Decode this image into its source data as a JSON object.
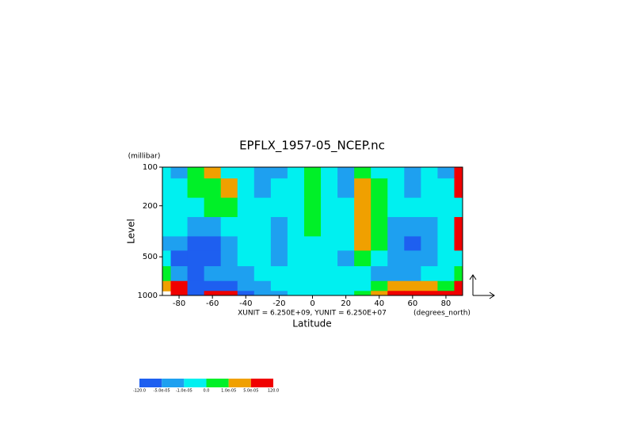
{
  "chart_data": {
    "type": "contour",
    "title": "EPFLX_1957-05_NCEP.nc",
    "y_unit": "(millibar)",
    "ylabel": "Level",
    "xlabel": "Latitude",
    "x_unit": "(degrees_north)",
    "vector_units": "XUNIT = 6.250E+09, YUNIT = 6.250E+07",
    "xlim": [
      -90,
      90
    ],
    "xticks": [
      -80,
      -60,
      -40,
      -20,
      0,
      20,
      40,
      60,
      80
    ],
    "ylim": [
      1000,
      100
    ],
    "yticks": [
      100,
      200,
      500,
      1000
    ],
    "y_log": true,
    "lat": [
      -90,
      -80,
      -70,
      -60,
      -50,
      -40,
      -30,
      -20,
      -10,
      0,
      10,
      20,
      30,
      40,
      50,
      60,
      70,
      80,
      90
    ],
    "lev": [
      100,
      150,
      200,
      300,
      400,
      500,
      700,
      850,
      1000
    ],
    "z": [
      [
        -5e-06,
        -3e-05,
        5e-06,
        3e-05,
        -5e-06,
        -5e-06,
        -3e-05,
        -3e-05,
        -5e-06,
        5e-06,
        -5e-06,
        -3e-05,
        5e-06,
        -5e-06,
        -5e-06,
        -3e-05,
        -5e-06,
        -3e-05,
        8e-05
      ],
      [
        -5e-06,
        -5e-06,
        5e-06,
        5e-06,
        3e-05,
        -5e-06,
        -3e-05,
        -5e-06,
        -5e-06,
        5e-06,
        -5e-06,
        -3e-05,
        3e-05,
        5e-06,
        -5e-06,
        -3e-05,
        -5e-06,
        -5e-06,
        8e-05
      ],
      [
        -5e-06,
        -5e-06,
        -5e-06,
        5e-06,
        5e-06,
        -5e-06,
        -5e-06,
        -5e-06,
        -5e-06,
        5e-06,
        -5e-06,
        -5e-06,
        3e-05,
        5e-06,
        -5e-06,
        -5e-06,
        -5e-06,
        -5e-06,
        -5e-06
      ],
      [
        -5e-06,
        -5e-06,
        -3e-05,
        -3e-05,
        -5e-06,
        -5e-06,
        -5e-06,
        -3e-05,
        -5e-06,
        5e-06,
        -5e-06,
        -5e-06,
        3e-05,
        5e-06,
        -3e-05,
        -3e-05,
        -3e-05,
        -5e-06,
        8e-05
      ],
      [
        -3e-05,
        -3e-05,
        -8e-05,
        -8e-05,
        -3e-05,
        -5e-06,
        -5e-06,
        -3e-05,
        -5e-06,
        -5e-06,
        -5e-06,
        -5e-06,
        3e-05,
        5e-06,
        -3e-05,
        -8e-05,
        -3e-05,
        -5e-06,
        8e-05
      ],
      [
        -5e-06,
        -8e-05,
        -8e-05,
        -8e-05,
        -3e-05,
        -5e-06,
        -5e-06,
        -3e-05,
        -5e-06,
        -5e-06,
        -5e-06,
        -3e-05,
        5e-06,
        -5e-06,
        -3e-05,
        -3e-05,
        -3e-05,
        -5e-06,
        -5e-06
      ],
      [
        5e-06,
        -3e-05,
        -8e-05,
        -3e-05,
        -3e-05,
        -3e-05,
        -5e-06,
        -5e-06,
        -5e-06,
        -5e-06,
        -5e-06,
        -5e-06,
        -5e-06,
        -3e-05,
        -3e-05,
        -3e-05,
        -5e-06,
        -5e-06,
        5e-06
      ],
      [
        3e-05,
        8e-05,
        -8e-05,
        -8e-05,
        -8e-05,
        -3e-05,
        -3e-05,
        -5e-06,
        -5e-06,
        -5e-06,
        -5e-06,
        -5e-06,
        -5e-06,
        5e-06,
        3e-05,
        3e-05,
        3e-05,
        5e-06,
        8e-05
      ],
      [
        null,
        8e-05,
        -8e-05,
        8e-05,
        8e-05,
        -8e-05,
        -3e-05,
        -3e-05,
        -5e-06,
        -5e-06,
        -5e-06,
        -5e-06,
        5e-06,
        3e-05,
        8e-05,
        8e-05,
        8e-05,
        8e-05,
        8e-05
      ]
    ],
    "colorbar": {
      "levels": [
        {
          "value": -120,
          "label": "-120.0"
        },
        {
          "value": -5e-05,
          "label": "-5.0e-05"
        },
        {
          "value": -1e-05,
          "label": "-1.0e-05"
        },
        {
          "value": 0,
          "label": "0.0"
        },
        {
          "value": 1e-05,
          "label": "1.0e-05"
        },
        {
          "value": 5e-05,
          "label": "5.0e-05"
        },
        {
          "value": 120,
          "label": "120.0"
        }
      ],
      "colors": [
        "#1e5ff0",
        "#1ea0f0",
        "#00f0f0",
        "#00f028",
        "#f0a000",
        "#f00000"
      ]
    }
  }
}
